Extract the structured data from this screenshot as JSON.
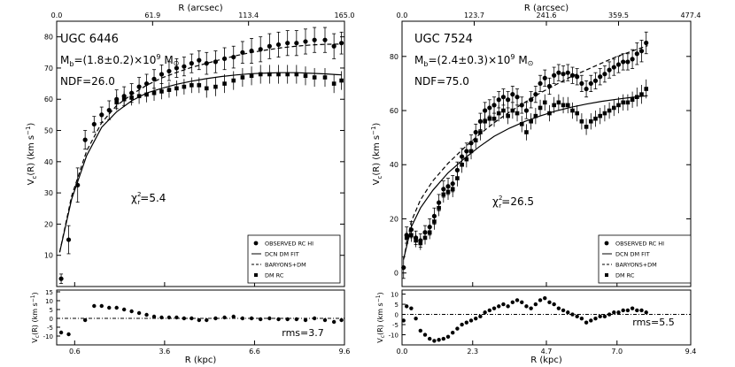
{
  "chart_data": [
    {
      "type": "scatter",
      "galaxy": "UGC 6446",
      "mass_text": "M",
      "mass_sub": "b",
      "mass_value": "=(1.8±0.2)×10",
      "mass_exp": "9",
      "mass_unit": " M",
      "mass_sun": "⊙",
      "ndf": "NDF=26.0",
      "chi_base": "χ",
      "chi_sup": "2",
      "chi_sub": "r",
      "chi_value": "=5.4",
      "rms": "rms=3.7",
      "xlabel": "R (kpc)",
      "top_xlabel": "R (arcsec)",
      "ylabel": "V",
      "ylabel_sub": "c",
      "ylabel_rest": "(R) (km s",
      "ylabel_exp": "−1",
      "ylabel_end": ")",
      "xlim": [
        0,
        9.6
      ],
      "ylim": [
        0,
        85
      ],
      "resid_ylim": [
        -15,
        16
      ],
      "xticks": [
        0.6,
        3.6,
        6.6,
        9.6
      ],
      "xtick_labels": [
        "0.6",
        "3.6",
        "6.6",
        "9.6"
      ],
      "top_ticks": [
        0,
        3.2,
        6.4,
        9.6
      ],
      "top_tick_labels": [
        "0.0",
        "61.9",
        "113.4",
        "165.0"
      ],
      "yticks": [
        10,
        20,
        30,
        40,
        50,
        60,
        70,
        80
      ],
      "ytick_labels": [
        "10",
        "20",
        "30",
        "40",
        "50",
        "60",
        "70",
        "80"
      ],
      "resid_yticks": [
        -10,
        -5,
        0,
        5,
        10,
        15
      ],
      "resid_ytick_labels": [
        "-10",
        "-5",
        "0",
        "5",
        "10",
        "15"
      ],
      "legend": {
        "placement": "bottom-right",
        "entries": [
          {
            "marker": "circle",
            "label": "OBSERVED RC HI"
          },
          {
            "marker": "solid",
            "label": "DCN DM FIT"
          },
          {
            "marker": "dashed",
            "label": "BARYONS+DM"
          },
          {
            "marker": "square",
            "label": "DM RC"
          }
        ]
      },
      "observed": {
        "r": [
          0.15,
          0.4,
          0.7,
          0.95,
          1.25,
          1.5,
          1.75,
          2.0,
          2.25,
          2.5,
          2.75,
          3.0,
          3.25,
          3.5,
          3.75,
          4.0,
          4.25,
          4.5,
          4.75,
          5.0,
          5.3,
          5.6,
          5.9,
          6.2,
          6.5,
          6.8,
          7.1,
          7.4,
          7.7,
          8.0,
          8.3,
          8.6,
          8.95,
          9.25,
          9.5
        ],
        "v": [
          2.5,
          15,
          32.5,
          47,
          52,
          55,
          56.5,
          60,
          61,
          62,
          64,
          65,
          66.5,
          68,
          69,
          70,
          70.5,
          71.5,
          72.5,
          71.5,
          72,
          73,
          73.5,
          75,
          75.5,
          76,
          77,
          77.5,
          78,
          78,
          78.5,
          79,
          79,
          77,
          78
        ],
        "err": [
          1.5,
          4.5,
          5.5,
          3,
          2.5,
          2.5,
          3,
          3,
          3,
          3,
          3,
          3,
          3,
          3,
          3,
          3,
          3,
          3,
          3,
          3.5,
          3.5,
          3.5,
          3.5,
          3.5,
          4,
          4,
          4,
          4,
          4,
          4,
          4,
          4,
          4,
          4,
          3.5
        ]
      },
      "dm_rc": {
        "r": [
          2.0,
          2.25,
          2.5,
          2.75,
          3.0,
          3.25,
          3.5,
          3.75,
          4.0,
          4.25,
          4.5,
          4.75,
          5.0,
          5.3,
          5.6,
          5.9,
          6.2,
          6.5,
          6.8,
          7.1,
          7.4,
          7.7,
          8.0,
          8.3,
          8.6,
          8.95,
          9.25,
          9.5
        ],
        "v": [
          59,
          60,
          60.5,
          61,
          61.5,
          62,
          62.5,
          63,
          63.5,
          64,
          64.5,
          64.5,
          63.5,
          64,
          65,
          66,
          67,
          67.5,
          68,
          68,
          68,
          68,
          68,
          67.5,
          67,
          67,
          65,
          66
        ],
        "err": [
          2.5,
          2.5,
          2.5,
          2.5,
          2.5,
          2.5,
          2.5,
          2.5,
          2.5,
          2.5,
          2.5,
          2.5,
          3,
          3,
          3,
          3,
          3,
          3,
          3,
          3,
          3,
          3,
          3,
          3,
          3,
          3,
          3,
          3
        ]
      },
      "dcn_fit": {
        "r": [
          0.1,
          0.5,
          1.0,
          1.5,
          2.0,
          2.5,
          3.0,
          3.5,
          4.0,
          4.5,
          5.0,
          5.5,
          6.0,
          6.5,
          7.0,
          7.5,
          8.0,
          8.5,
          9.0,
          9.5
        ],
        "v": [
          11,
          28,
          42,
          51,
          56,
          59.5,
          62,
          63.5,
          64.8,
          65.8,
          66.6,
          67.3,
          67.8,
          68.2,
          68.4,
          68.5,
          68.5,
          68.3,
          68.1,
          67.8
        ]
      },
      "baryons_dm": {
        "r": [
          0.1,
          0.5,
          1.0,
          1.5,
          2.0,
          2.5,
          3.0,
          3.5,
          4.0,
          4.5,
          5.0,
          5.5,
          6.0,
          6.5,
          7.0,
          7.5,
          8.0,
          8.5,
          9.0,
          9.5
        ],
        "v": [
          11,
          29,
          43.5,
          52.5,
          58,
          61.5,
          64.5,
          66.8,
          68.6,
          70.2,
          71.5,
          72.8,
          74,
          75,
          75.8,
          76.5,
          77,
          77.4,
          77.6,
          77.7
        ]
      },
      "residuals": {
        "r": [
          0.15,
          0.4,
          0.95,
          1.25,
          1.5,
          1.75,
          2.0,
          2.25,
          2.5,
          2.75,
          3.0,
          3.25,
          3.5,
          3.75,
          4.0,
          4.25,
          4.5,
          4.75,
          5.0,
          5.3,
          5.6,
          5.9,
          6.2,
          6.5,
          6.8,
          7.1,
          7.4,
          7.7,
          8.0,
          8.3,
          8.6,
          8.95,
          9.25,
          9.5
        ],
        "v": [
          -8,
          -9,
          -1,
          7,
          7,
          6,
          6,
          5,
          4,
          3,
          2,
          1,
          0.5,
          0.5,
          0.5,
          0,
          0,
          -1,
          -1,
          0,
          0.5,
          1,
          0,
          0,
          -0.5,
          0,
          -0.5,
          -0.5,
          -0.5,
          -1,
          0,
          -1,
          -2,
          -1
        ]
      }
    },
    {
      "type": "scatter",
      "galaxy": "UGC 7524",
      "mass_text": "M",
      "mass_sub": "b",
      "mass_value": "=(2.4±0.3)×10",
      "mass_exp": "9",
      "mass_unit": " M",
      "mass_sun": "⊙",
      "ndf": "NDF=75.0",
      "chi_base": "χ",
      "chi_sup": "2",
      "chi_sub": "r",
      "chi_value": "=26.5",
      "rms": "rms=5.5",
      "xlabel": "R (kpc)",
      "top_xlabel": "R (arcsec)",
      "ylabel": "V",
      "ylabel_sub": "c",
      "ylabel_rest": "(R) (km s",
      "ylabel_exp": "−1",
      "ylabel_end": ")",
      "xlim": [
        0,
        9.4
      ],
      "ylim": [
        -5,
        93
      ],
      "resid_ylim": [
        -15,
        12
      ],
      "xticks": [
        0.0,
        2.3,
        4.7,
        7.0,
        9.4
      ],
      "xtick_labels": [
        "0.0",
        "2.3",
        "4.7",
        "7.0",
        "9.4"
      ],
      "top_ticks": [
        0,
        2.35,
        4.7,
        7.05,
        9.4
      ],
      "top_tick_labels": [
        "0.0",
        "123.7",
        "241.6",
        "359.5",
        "477.4"
      ],
      "yticks": [
        0,
        20,
        40,
        60,
        80
      ],
      "ytick_labels": [
        "0",
        "20",
        "40",
        "60",
        "80"
      ],
      "resid_yticks": [
        -10,
        -5,
        0,
        5,
        10
      ],
      "resid_ytick_labels": [
        "-10",
        "-5",
        "0",
        "5",
        "10"
      ],
      "legend": {
        "placement": "bottom-right",
        "entries": [
          {
            "marker": "circle",
            "label": "OBSERVED RC HI"
          },
          {
            "marker": "solid",
            "label": "DCN DM FIT"
          },
          {
            "marker": "dashed",
            "label": "BARYONS+DM"
          },
          {
            "marker": "square",
            "label": "DM RC"
          }
        ]
      },
      "observed": {
        "r": [
          0.05,
          0.15,
          0.3,
          0.45,
          0.6,
          0.75,
          0.9,
          1.05,
          1.2,
          1.35,
          1.5,
          1.65,
          1.8,
          1.95,
          2.1,
          2.25,
          2.4,
          2.55,
          2.7,
          2.85,
          3.0,
          3.15,
          3.3,
          3.45,
          3.6,
          3.75,
          3.9,
          4.05,
          4.2,
          4.35,
          4.5,
          4.65,
          4.8,
          4.95,
          5.1,
          5.25,
          5.4,
          5.55,
          5.7,
          5.85,
          6.0,
          6.15,
          6.3,
          6.45,
          6.6,
          6.75,
          6.9,
          7.05,
          7.2,
          7.35,
          7.5,
          7.65,
          7.8,
          7.95
        ],
        "v": [
          2,
          14,
          16,
          13,
          12,
          15,
          17,
          21,
          26,
          31,
          32,
          33,
          38,
          43,
          45,
          48,
          52,
          56,
          60,
          61,
          62,
          64,
          65,
          64,
          66,
          65,
          62,
          60,
          64,
          66,
          70,
          72,
          69,
          73,
          74,
          73.5,
          74,
          73,
          72.5,
          70,
          68,
          70,
          71,
          72.5,
          73.5,
          75,
          76,
          77,
          78,
          78,
          79,
          81,
          82,
          85
        ],
        "err": [
          4,
          3,
          3,
          2.5,
          2.5,
          2.5,
          3,
          3,
          3,
          3,
          3,
          3,
          3,
          3,
          3,
          3,
          3,
          3,
          3,
          3,
          3,
          3,
          3,
          3,
          3,
          3,
          3,
          3,
          3,
          3,
          3,
          3,
          3,
          3,
          3,
          3,
          3,
          3,
          3,
          3,
          3,
          3,
          3,
          3,
          3,
          3,
          3,
          3,
          3,
          3,
          3.5,
          4,
          4,
          4
        ]
      },
      "dm_rc": {
        "r": [
          0.15,
          0.3,
          0.45,
          0.6,
          0.75,
          0.9,
          1.05,
          1.2,
          1.35,
          1.5,
          1.65,
          1.8,
          1.95,
          2.1,
          2.25,
          2.4,
          2.55,
          2.7,
          2.85,
          3.0,
          3.15,
          3.3,
          3.45,
          3.6,
          3.75,
          3.9,
          4.05,
          4.2,
          4.35,
          4.5,
          4.65,
          4.8,
          4.95,
          5.1,
          5.25,
          5.4,
          5.55,
          5.7,
          5.85,
          6.0,
          6.15,
          6.3,
          6.45,
          6.6,
          6.75,
          6.9,
          7.05,
          7.2,
          7.35,
          7.5,
          7.65,
          7.8,
          7.95
        ],
        "v": [
          13,
          14,
          12,
          11,
          13,
          15,
          19,
          24,
          29,
          30,
          31,
          35,
          40,
          42,
          45,
          49,
          52,
          56,
          57,
          57,
          59,
          60,
          58,
          60,
          59,
          55,
          52,
          56,
          58,
          61,
          63,
          59,
          62,
          63,
          62,
          62,
          60,
          59,
          56,
          54,
          56,
          57,
          58,
          59,
          60,
          61,
          62,
          63,
          63,
          64,
          65,
          66,
          68
        ],
        "err": [
          2.5,
          2.5,
          2.5,
          2.5,
          2.5,
          2.5,
          3,
          3,
          3,
          3,
          3,
          3,
          3,
          3,
          3,
          3,
          3,
          3,
          3,
          3,
          3,
          3,
          3,
          3,
          3,
          3,
          3,
          3,
          3,
          3,
          3,
          3,
          3,
          3,
          3,
          3,
          3,
          3,
          3,
          3,
          3,
          3,
          3,
          3,
          3,
          3,
          3,
          3,
          3,
          3,
          3.5,
          3.5,
          3.5
        ]
      },
      "dcn_fit": {
        "r": [
          0.05,
          0.3,
          0.6,
          1.0,
          1.5,
          2.0,
          2.5,
          3.0,
          3.5,
          4.0,
          4.5,
          5.0,
          5.5,
          6.0,
          6.5,
          7.0,
          7.5,
          8.0
        ],
        "v": [
          5,
          17,
          24,
          30.5,
          37,
          42,
          46.5,
          50.5,
          53.5,
          56,
          58,
          59.8,
          61.2,
          62.4,
          63.4,
          64.2,
          64.9,
          65.5
        ]
      },
      "baryons_dm": {
        "r": [
          0.05,
          0.3,
          0.6,
          1.0,
          1.5,
          2.0,
          2.5,
          3.0,
          3.5,
          4.0,
          4.5,
          5.0,
          5.5,
          6.0,
          6.5,
          7.0,
          7.5,
          8.0
        ],
        "v": [
          5,
          19,
          27,
          34,
          40.5,
          46,
          51,
          55.5,
          59.5,
          63,
          66.5,
          69.5,
          72.5,
          75,
          77.5,
          80,
          82,
          84
        ]
      },
      "residuals": {
        "r": [
          0.05,
          0.15,
          0.3,
          0.45,
          0.6,
          0.75,
          0.9,
          1.05,
          1.2,
          1.35,
          1.5,
          1.65,
          1.8,
          1.95,
          2.1,
          2.25,
          2.4,
          2.55,
          2.7,
          2.85,
          3.0,
          3.15,
          3.3,
          3.45,
          3.6,
          3.75,
          3.9,
          4.05,
          4.2,
          4.35,
          4.5,
          4.65,
          4.8,
          4.95,
          5.1,
          5.25,
          5.4,
          5.55,
          5.7,
          5.85,
          6.0,
          6.15,
          6.3,
          6.45,
          6.6,
          6.75,
          6.9,
          7.05,
          7.2,
          7.35,
          7.5,
          7.65,
          7.8,
          7.95
        ],
        "v": [
          -3,
          4,
          3,
          -2,
          -8,
          -10,
          -12,
          -13,
          -12.5,
          -12,
          -11,
          -9,
          -7,
          -5,
          -4,
          -3,
          -2,
          -1,
          1,
          2,
          3,
          4,
          5,
          4,
          6,
          7,
          6,
          4,
          3,
          5,
          7,
          8,
          6,
          5,
          3,
          2,
          1,
          0,
          -1,
          -2,
          -4,
          -3,
          -2,
          -1,
          -1,
          0,
          1,
          1,
          2,
          2,
          3,
          2,
          2,
          1
        ]
      }
    }
  ]
}
